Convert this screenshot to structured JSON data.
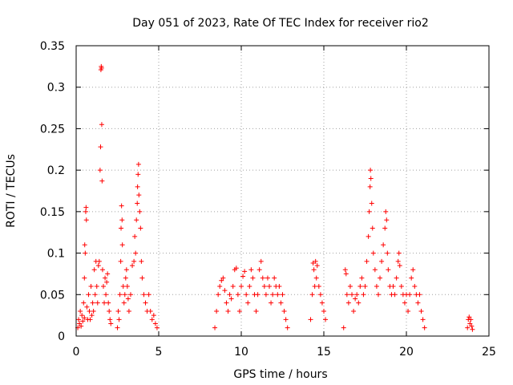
{
  "chart_data": {
    "type": "scatter",
    "title": "Day 051 of 2023, Rate Of TEC Index for receiver rio2",
    "xlabel": "GPS time / hours",
    "ylabel": "ROTI / TECUs",
    "xlim": [
      0,
      25
    ],
    "ylim": [
      0,
      0.35
    ],
    "grid": true,
    "marker": "+",
    "marker_color": "#ff0000",
    "x_ticks": [
      0,
      5,
      10,
      15,
      20,
      25
    ],
    "x_tick_labels": [
      "0",
      "5",
      "10",
      "15",
      "20",
      "25"
    ],
    "y_ticks": [
      0,
      0.05,
      0.1,
      0.15,
      0.2,
      0.25,
      0.3,
      0.35
    ],
    "y_tick_labels": [
      "0",
      "0.05",
      "0.1",
      "0.15",
      "0.2",
      "0.25",
      "0.3",
      "0.35"
    ],
    "series": [
      {
        "name": "rio2 ROTI",
        "points": [
          [
            0.1,
            0.01
          ],
          [
            0.15,
            0.02
          ],
          [
            0.2,
            0.015
          ],
          [
            0.25,
            0.03
          ],
          [
            0.3,
            0.012
          ],
          [
            0.35,
            0.025
          ],
          [
            0.4,
            0.018
          ],
          [
            0.45,
            0.04
          ],
          [
            0.5,
            0.022
          ],
          [
            0.5,
            0.07
          ],
          [
            0.52,
            0.11
          ],
          [
            0.55,
            0.1
          ],
          [
            0.58,
            0.15
          ],
          [
            0.6,
            0.155
          ],
          [
            0.62,
            0.14
          ],
          [
            0.65,
            0.035
          ],
          [
            0.7,
            0.02
          ],
          [
            0.75,
            0.05
          ],
          [
            0.8,
            0.03
          ],
          [
            0.85,
            0.02
          ],
          [
            0.9,
            0.06
          ],
          [
            0.95,
            0.025
          ],
          [
            1.0,
            0.04
          ],
          [
            1.05,
            0.03
          ],
          [
            1.1,
            0.08
          ],
          [
            1.15,
            0.05
          ],
          [
            1.2,
            0.09
          ],
          [
            1.25,
            0.06
          ],
          [
            1.3,
            0.04
          ],
          [
            1.35,
            0.085
          ],
          [
            1.4,
            0.09
          ],
          [
            1.45,
            0.2
          ],
          [
            1.48,
            0.228
          ],
          [
            1.5,
            0.321
          ],
          [
            1.52,
            0.325
          ],
          [
            1.54,
            0.323
          ],
          [
            1.55,
            0.255
          ],
          [
            1.57,
            0.187
          ],
          [
            1.6,
            0.08
          ],
          [
            1.65,
            0.06
          ],
          [
            1.7,
            0.04
          ],
          [
            1.75,
            0.07
          ],
          [
            1.8,
            0.05
          ],
          [
            1.85,
            0.065
          ],
          [
            1.9,
            0.075
          ],
          [
            1.95,
            0.04
          ],
          [
            2.0,
            0.03
          ],
          [
            2.05,
            0.02
          ],
          [
            2.1,
            0.015
          ],
          [
            2.5,
            0.01
          ],
          [
            2.55,
            0.03
          ],
          [
            2.6,
            0.02
          ],
          [
            2.65,
            0.05
          ],
          [
            2.7,
            0.09
          ],
          [
            2.72,
            0.13
          ],
          [
            2.75,
            0.157
          ],
          [
            2.78,
            0.14
          ],
          [
            2.8,
            0.11
          ],
          [
            2.85,
            0.06
          ],
          [
            2.9,
            0.04
          ],
          [
            2.95,
            0.05
          ],
          [
            3.0,
            0.07
          ],
          [
            3.05,
            0.08
          ],
          [
            3.1,
            0.06
          ],
          [
            3.15,
            0.045
          ],
          [
            3.2,
            0.03
          ],
          [
            3.3,
            0.05
          ],
          [
            3.4,
            0.085
          ],
          [
            3.5,
            0.09
          ],
          [
            3.55,
            0.12
          ],
          [
            3.6,
            0.1
          ],
          [
            3.65,
            0.14
          ],
          [
            3.7,
            0.16
          ],
          [
            3.72,
            0.18
          ],
          [
            3.75,
            0.195
          ],
          [
            3.78,
            0.207
          ],
          [
            3.8,
            0.17
          ],
          [
            3.85,
            0.15
          ],
          [
            3.9,
            0.13
          ],
          [
            3.95,
            0.09
          ],
          [
            4.0,
            0.07
          ],
          [
            4.1,
            0.05
          ],
          [
            4.2,
            0.04
          ],
          [
            4.3,
            0.03
          ],
          [
            4.4,
            0.05
          ],
          [
            4.5,
            0.03
          ],
          [
            4.6,
            0.02
          ],
          [
            4.7,
            0.025
          ],
          [
            4.8,
            0.015
          ],
          [
            4.9,
            0.01
          ],
          [
            8.4,
            0.01
          ],
          [
            8.5,
            0.03
          ],
          [
            8.6,
            0.05
          ],
          [
            8.7,
            0.06
          ],
          [
            8.8,
            0.067
          ],
          [
            8.9,
            0.07
          ],
          [
            9.0,
            0.055
          ],
          [
            9.1,
            0.04
          ],
          [
            9.2,
            0.03
          ],
          [
            9.3,
            0.05
          ],
          [
            9.4,
            0.045
          ],
          [
            9.5,
            0.06
          ],
          [
            9.6,
            0.08
          ],
          [
            9.7,
            0.082
          ],
          [
            9.8,
            0.05
          ],
          [
            9.9,
            0.03
          ],
          [
            10.0,
            0.06
          ],
          [
            10.1,
            0.072
          ],
          [
            10.2,
            0.078
          ],
          [
            10.3,
            0.05
          ],
          [
            10.4,
            0.04
          ],
          [
            10.5,
            0.06
          ],
          [
            10.6,
            0.08
          ],
          [
            10.7,
            0.07
          ],
          [
            10.8,
            0.05
          ],
          [
            10.9,
            0.03
          ],
          [
            11.0,
            0.05
          ],
          [
            11.1,
            0.08
          ],
          [
            11.2,
            0.09
          ],
          [
            11.3,
            0.07
          ],
          [
            11.4,
            0.06
          ],
          [
            11.5,
            0.05
          ],
          [
            11.6,
            0.07
          ],
          [
            11.7,
            0.06
          ],
          [
            11.8,
            0.04
          ],
          [
            11.9,
            0.05
          ],
          [
            12.0,
            0.07
          ],
          [
            12.1,
            0.06
          ],
          [
            12.2,
            0.05
          ],
          [
            12.3,
            0.06
          ],
          [
            12.4,
            0.04
          ],
          [
            12.5,
            0.05
          ],
          [
            12.6,
            0.03
          ],
          [
            12.7,
            0.02
          ],
          [
            12.8,
            0.01
          ],
          [
            14.2,
            0.02
          ],
          [
            14.3,
            0.05
          ],
          [
            14.35,
            0.088
          ],
          [
            14.4,
            0.08
          ],
          [
            14.45,
            0.06
          ],
          [
            14.5,
            0.09
          ],
          [
            14.55,
            0.07
          ],
          [
            14.6,
            0.085
          ],
          [
            14.7,
            0.06
          ],
          [
            14.8,
            0.05
          ],
          [
            14.9,
            0.04
          ],
          [
            15.0,
            0.03
          ],
          [
            15.1,
            0.02
          ],
          [
            16.2,
            0.01
          ],
          [
            16.3,
            0.08
          ],
          [
            16.35,
            0.075
          ],
          [
            16.4,
            0.05
          ],
          [
            16.5,
            0.04
          ],
          [
            16.6,
            0.06
          ],
          [
            16.7,
            0.05
          ],
          [
            16.8,
            0.03
          ],
          [
            16.9,
            0.045
          ],
          [
            17.0,
            0.05
          ],
          [
            17.1,
            0.04
          ],
          [
            17.2,
            0.06
          ],
          [
            17.3,
            0.07
          ],
          [
            17.4,
            0.05
          ],
          [
            17.5,
            0.06
          ],
          [
            17.6,
            0.09
          ],
          [
            17.7,
            0.12
          ],
          [
            17.75,
            0.15
          ],
          [
            17.8,
            0.18
          ],
          [
            17.82,
            0.2
          ],
          [
            17.85,
            0.19
          ],
          [
            17.9,
            0.16
          ],
          [
            17.95,
            0.13
          ],
          [
            18.0,
            0.1
          ],
          [
            18.1,
            0.08
          ],
          [
            18.2,
            0.06
          ],
          [
            18.3,
            0.05
          ],
          [
            18.4,
            0.07
          ],
          [
            18.5,
            0.09
          ],
          [
            18.6,
            0.11
          ],
          [
            18.7,
            0.13
          ],
          [
            18.75,
            0.15
          ],
          [
            18.8,
            0.14
          ],
          [
            18.85,
            0.1
          ],
          [
            18.9,
            0.08
          ],
          [
            19.0,
            0.06
          ],
          [
            19.1,
            0.05
          ],
          [
            19.2,
            0.06
          ],
          [
            19.3,
            0.05
          ],
          [
            19.4,
            0.07
          ],
          [
            19.5,
            0.09
          ],
          [
            19.55,
            0.1
          ],
          [
            19.6,
            0.085
          ],
          [
            19.7,
            0.06
          ],
          [
            19.8,
            0.05
          ],
          [
            19.9,
            0.04
          ],
          [
            20.0,
            0.05
          ],
          [
            20.1,
            0.03
          ],
          [
            20.2,
            0.05
          ],
          [
            20.3,
            0.07
          ],
          [
            20.4,
            0.08
          ],
          [
            20.5,
            0.06
          ],
          [
            20.6,
            0.05
          ],
          [
            20.7,
            0.04
          ],
          [
            20.8,
            0.05
          ],
          [
            20.9,
            0.03
          ],
          [
            21.0,
            0.02
          ],
          [
            21.1,
            0.01
          ],
          [
            23.7,
            0.01
          ],
          [
            23.75,
            0.02
          ],
          [
            23.8,
            0.023
          ],
          [
            23.85,
            0.015
          ],
          [
            23.9,
            0.02
          ],
          [
            23.95,
            0.012
          ],
          [
            24.0,
            0.008
          ]
        ]
      }
    ]
  }
}
